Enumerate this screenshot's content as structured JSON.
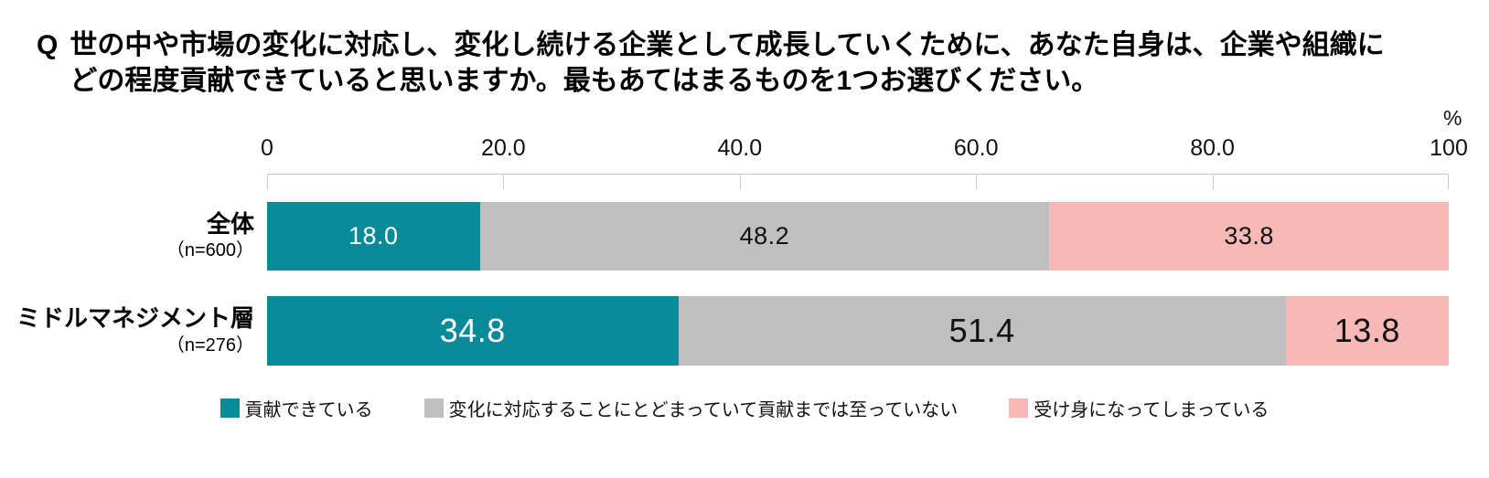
{
  "title": {
    "prefix": "Q",
    "lines": [
      "世の中や市場の変化に対応し、変化し続ける企業として成長していくために、あなた自身は、企業や組織に",
      "どの程度貢献できていると思いますか。最もあてはまるものを1つお選びください。"
    ]
  },
  "colors": {
    "teal": "#088A99",
    "gray": "#BFBFBF",
    "pink": "#F8B8B8",
    "axis": "#C9C9C9",
    "value_text_dark": "#111111",
    "value_text_light": "#FFFFFF"
  },
  "chart_data": {
    "type": "bar",
    "orientation": "horizontal",
    "stacked": true,
    "grid": false,
    "legend_position": "bottom",
    "x_axis": {
      "range": [
        0,
        100
      ],
      "tick_values": [
        0,
        20,
        40,
        60,
        80,
        100
      ],
      "tick_labels": [
        "0",
        "20.0",
        "40.0",
        "60.0",
        "80.0",
        "100"
      ],
      "unit_label": "%"
    },
    "categories": [
      {
        "label": "全体",
        "n_label": "（n=600）"
      },
      {
        "label": "ミドルマネジメント層",
        "n_label": "（n=276）"
      }
    ],
    "series": [
      {
        "name": "貢献できている",
        "color": "#088A99",
        "label_color": "#FFFFFF",
        "values": [
          18.0,
          34.8
        ],
        "value_labels": [
          "18.0",
          "34.8"
        ]
      },
      {
        "name": "変化に対応することにとどまっていて貢献までは至っていない",
        "color": "#BFBFBF",
        "label_color": "#111111",
        "values": [
          48.2,
          51.4
        ],
        "value_labels": [
          "48.2",
          "51.4"
        ]
      },
      {
        "name": "受け身になってしまっている",
        "color": "#F8B8B8",
        "label_color": "#111111",
        "values": [
          33.8,
          13.8
        ],
        "value_labels": [
          "33.8",
          "13.8"
        ]
      }
    ]
  }
}
